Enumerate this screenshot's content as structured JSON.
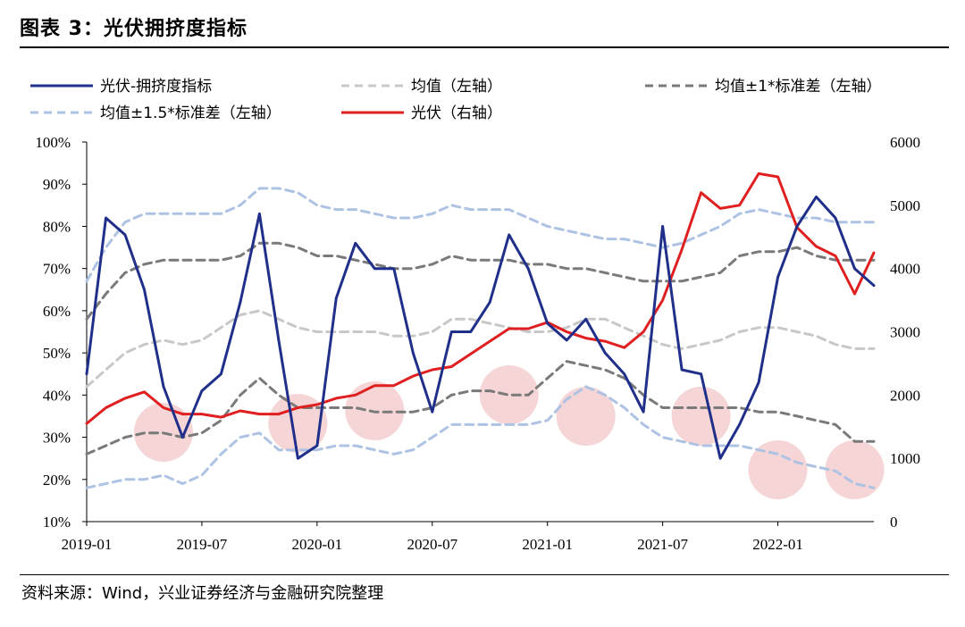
{
  "title": "图表 3：光伏拥挤度指标",
  "source": "资料来源：Wind，兴业证券经济与金融研究院整理",
  "chart_data": {
    "type": "line",
    "x": [
      "2019-01",
      "2019-02",
      "2019-03",
      "2019-04",
      "2019-05",
      "2019-06",
      "2019-07",
      "2019-08",
      "2019-09",
      "2019-10",
      "2019-11",
      "2019-12",
      "2020-01",
      "2020-02",
      "2020-03",
      "2020-04",
      "2020-05",
      "2020-06",
      "2020-07",
      "2020-08",
      "2020-09",
      "2020-10",
      "2020-11",
      "2020-12",
      "2021-01",
      "2021-02",
      "2021-03",
      "2021-04",
      "2021-05",
      "2021-06",
      "2021-07",
      "2021-08",
      "2021-09",
      "2021-10",
      "2021-11",
      "2021-12",
      "2022-01",
      "2022-02",
      "2022-03",
      "2022-04",
      "2022-05",
      "2022-06"
    ],
    "x_ticks": [
      "2019-01",
      "2019-07",
      "2020-01",
      "2020-07",
      "2021-01",
      "2021-07",
      "2022-01"
    ],
    "y_left": {
      "ylim": [
        0.1,
        1.0
      ],
      "ticks": [
        "10%",
        "20%",
        "30%",
        "40%",
        "50%",
        "60%",
        "70%",
        "80%",
        "90%",
        "100%"
      ]
    },
    "y_right": {
      "ylim": [
        0,
        6000
      ],
      "ticks": [
        "0",
        "1000",
        "2000",
        "3000",
        "4000",
        "5000",
        "6000"
      ]
    },
    "series": [
      {
        "name": "光伏-拥挤度指标",
        "axis": "left",
        "color": "#1f2f8a",
        "style": "solid",
        "values": [
          0.45,
          0.82,
          0.78,
          0.65,
          0.42,
          0.3,
          0.41,
          0.45,
          0.62,
          0.83,
          0.53,
          0.25,
          0.28,
          0.63,
          0.76,
          0.7,
          0.7,
          0.5,
          0.36,
          0.55,
          0.55,
          0.62,
          0.78,
          0.7,
          0.57,
          0.53,
          0.58,
          0.5,
          0.45,
          0.36,
          0.8,
          0.46,
          0.45,
          0.25,
          0.33,
          0.43,
          0.68,
          0.8,
          0.87,
          0.82,
          0.7,
          0.66
        ]
      },
      {
        "name": "均值（左轴）",
        "axis": "left",
        "color": "#c8c8c8",
        "style": "dash",
        "values": [
          0.42,
          0.46,
          0.5,
          0.52,
          0.53,
          0.52,
          0.53,
          0.56,
          0.59,
          0.6,
          0.58,
          0.56,
          0.55,
          0.55,
          0.55,
          0.55,
          0.54,
          0.54,
          0.55,
          0.58,
          0.58,
          0.57,
          0.56,
          0.55,
          0.55,
          0.56,
          0.58,
          0.58,
          0.56,
          0.54,
          0.52,
          0.51,
          0.52,
          0.53,
          0.55,
          0.56,
          0.56,
          0.55,
          0.54,
          0.52,
          0.51,
          0.51
        ]
      },
      {
        "name": "均值±1*标准差（左轴）",
        "axis": "left",
        "color": "#7a7a7a",
        "style": "dash",
        "values": [
          0.26,
          0.28,
          0.3,
          0.31,
          0.31,
          0.3,
          0.31,
          0.34,
          0.4,
          0.44,
          0.4,
          0.37,
          0.37,
          0.37,
          0.37,
          0.36,
          0.36,
          0.36,
          0.37,
          0.4,
          0.41,
          0.41,
          0.4,
          0.4,
          0.44,
          0.48,
          0.47,
          0.46,
          0.44,
          0.4,
          0.37,
          0.37,
          0.37,
          0.37,
          0.37,
          0.36,
          0.36,
          0.35,
          0.34,
          0.33,
          0.29,
          0.29
        ]
      },
      {
        "name": "均值±1*标准差（左轴）",
        "axis": "left",
        "color": "#7a7a7a",
        "style": "dash",
        "legend": false,
        "values": [
          0.58,
          0.64,
          0.69,
          0.71,
          0.72,
          0.72,
          0.72,
          0.72,
          0.73,
          0.76,
          0.76,
          0.75,
          0.73,
          0.73,
          0.72,
          0.71,
          0.7,
          0.7,
          0.71,
          0.73,
          0.72,
          0.72,
          0.72,
          0.71,
          0.71,
          0.7,
          0.7,
          0.69,
          0.68,
          0.67,
          0.67,
          0.67,
          0.68,
          0.69,
          0.73,
          0.74,
          0.74,
          0.75,
          0.73,
          0.72,
          0.72,
          0.72
        ]
      },
      {
        "name": "均值±1.5*标准差（左轴）",
        "axis": "left",
        "color": "#aec3e3",
        "style": "dash",
        "values": [
          0.18,
          0.19,
          0.2,
          0.2,
          0.21,
          0.19,
          0.21,
          0.26,
          0.3,
          0.31,
          0.27,
          0.27,
          0.27,
          0.28,
          0.28,
          0.27,
          0.26,
          0.27,
          0.3,
          0.33,
          0.33,
          0.33,
          0.33,
          0.33,
          0.34,
          0.39,
          0.42,
          0.4,
          0.37,
          0.33,
          0.3,
          0.29,
          0.28,
          0.28,
          0.28,
          0.27,
          0.26,
          0.24,
          0.23,
          0.22,
          0.19,
          0.18
        ]
      },
      {
        "name": "均值±1.5*标准差（左轴）",
        "axis": "left",
        "color": "#aec3e3",
        "style": "dash",
        "legend": false,
        "values": [
          0.67,
          0.75,
          0.81,
          0.83,
          0.83,
          0.83,
          0.83,
          0.83,
          0.85,
          0.89,
          0.89,
          0.88,
          0.85,
          0.84,
          0.84,
          0.83,
          0.82,
          0.82,
          0.83,
          0.85,
          0.84,
          0.84,
          0.84,
          0.82,
          0.8,
          0.79,
          0.78,
          0.77,
          0.77,
          0.76,
          0.75,
          0.76,
          0.78,
          0.8,
          0.83,
          0.84,
          0.83,
          0.82,
          0.82,
          0.81,
          0.81,
          0.81
        ]
      },
      {
        "name": "光伏（右轴）",
        "axis": "right",
        "color": "#e02020",
        "style": "solid",
        "values": [
          1550,
          1800,
          1950,
          2050,
          1800,
          1700,
          1700,
          1650,
          1750,
          1700,
          1700,
          1800,
          1850,
          1950,
          2000,
          2150,
          2150,
          2300,
          2400,
          2450,
          2650,
          2850,
          3050,
          3050,
          3150,
          3000,
          2900,
          2850,
          2750,
          3000,
          3500,
          4300,
          5200,
          4950,
          5000,
          5500,
          5450,
          4650,
          4350,
          4200,
          3600,
          4250
        ]
      }
    ],
    "highlight_circles_x": [
      "2019-05",
      "2019-12",
      "2020-04",
      "2020-11",
      "2021-03",
      "2021-09",
      "2022-01",
      "2022-05"
    ],
    "legend_placement": "top"
  }
}
